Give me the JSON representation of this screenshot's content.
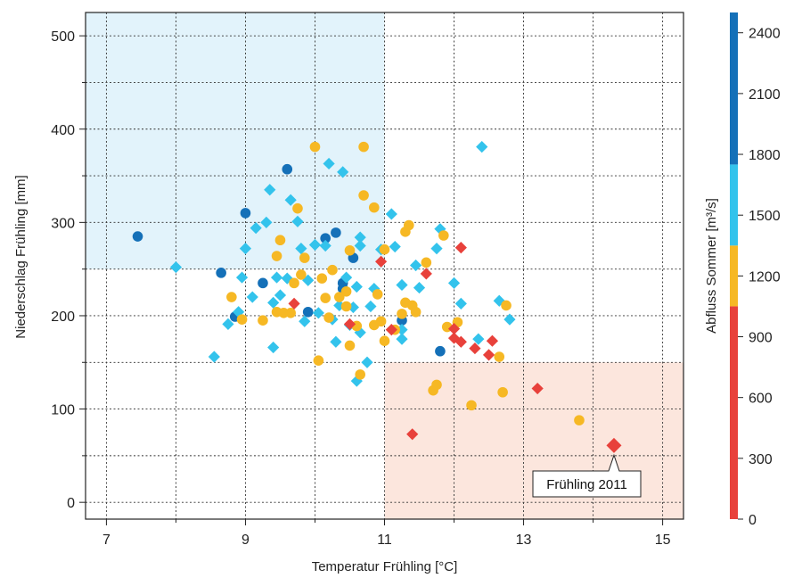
{
  "chart_data": {
    "type": "scatter",
    "xlabel": "Temperatur Frühling [°C]",
    "ylabel": "Niederschlag Frühling [mm]",
    "xlim": [
      6.7,
      15.3
    ],
    "ylim": [
      -18,
      525
    ],
    "xticks": [
      7,
      9,
      11,
      13,
      15
    ],
    "yticks": [
      0,
      100,
      200,
      300,
      400,
      500
    ],
    "grid": true,
    "highlight_regions": [
      {
        "x": [
          6.7,
          11
        ],
        "y": [
          250,
          525
        ],
        "color": "#e2f3fb"
      },
      {
        "x": [
          11,
          15.3
        ],
        "y": [
          -18,
          150
        ],
        "color": "#fce6dd"
      }
    ],
    "colorbar": {
      "label": "Abfluss Sommer [m³/s]",
      "ticks": [
        0,
        300,
        600,
        900,
        1200,
        1500,
        1800,
        2100,
        2400
      ],
      "range": [
        0,
        2500
      ],
      "bands": [
        {
          "from": 0,
          "to": 1050,
          "color": "#e8413b"
        },
        {
          "from": 1050,
          "to": 1350,
          "color": "#f6b824"
        },
        {
          "from": 1350,
          "to": 1750,
          "color": "#33c3ec"
        },
        {
          "from": 1750,
          "to": 2500,
          "color": "#1470b8"
        }
      ]
    },
    "annotation": {
      "text": "Frühling 2011",
      "x": 14.3,
      "y": 61
    },
    "series": [
      {
        "marker": "circle",
        "class": "1750-2500",
        "color": "#1470b8",
        "points": [
          [
            7.45,
            285
          ],
          [
            9.0,
            310
          ],
          [
            9.6,
            357
          ],
          [
            8.65,
            246
          ],
          [
            9.25,
            235
          ],
          [
            8.85,
            199
          ],
          [
            9.9,
            204
          ],
          [
            10.15,
            283
          ],
          [
            10.3,
            289
          ],
          [
            10.4,
            235
          ],
          [
            10.4,
            229
          ],
          [
            10.55,
            262
          ],
          [
            11.25,
            195
          ],
          [
            11.8,
            162
          ]
        ]
      },
      {
        "marker": "diamond",
        "class": "1350-1750",
        "color": "#33c3ec",
        "points": [
          [
            8.0,
            252
          ],
          [
            8.55,
            156
          ],
          [
            8.75,
            191
          ],
          [
            8.9,
            204
          ],
          [
            8.95,
            241
          ],
          [
            9.0,
            272
          ],
          [
            9.1,
            220
          ],
          [
            9.15,
            294
          ],
          [
            9.3,
            300
          ],
          [
            9.35,
            335
          ],
          [
            9.4,
            166
          ],
          [
            9.4,
            214
          ],
          [
            9.45,
            241
          ],
          [
            9.5,
            222
          ],
          [
            9.6,
            240
          ],
          [
            9.65,
            324
          ],
          [
            9.75,
            301
          ],
          [
            9.8,
            272
          ],
          [
            9.85,
            194
          ],
          [
            9.9,
            238
          ],
          [
            10.0,
            276
          ],
          [
            10.05,
            203
          ],
          [
            10.15,
            275
          ],
          [
            10.2,
            363
          ],
          [
            10.25,
            196
          ],
          [
            10.3,
            172
          ],
          [
            10.35,
            211
          ],
          [
            10.4,
            354
          ],
          [
            10.45,
            241
          ],
          [
            10.5,
            190
          ],
          [
            10.55,
            209
          ],
          [
            10.6,
            130
          ],
          [
            10.6,
            231
          ],
          [
            10.65,
            275
          ],
          [
            10.65,
            284
          ],
          [
            10.65,
            182
          ],
          [
            10.75,
            150
          ],
          [
            10.8,
            210
          ],
          [
            10.85,
            229
          ],
          [
            10.95,
            271
          ],
          [
            11.1,
            309
          ],
          [
            11.15,
            274
          ],
          [
            11.25,
            233
          ],
          [
            11.25,
            185
          ],
          [
            11.25,
            175
          ],
          [
            11.45,
            254
          ],
          [
            11.5,
            230
          ],
          [
            11.75,
            272
          ],
          [
            11.8,
            293
          ],
          [
            12.0,
            235
          ],
          [
            12.1,
            213
          ],
          [
            12.35,
            175
          ],
          [
            12.4,
            381
          ],
          [
            12.65,
            216
          ],
          [
            12.8,
            196
          ]
        ]
      },
      {
        "marker": "circle",
        "class": "1050-1350",
        "color": "#f6b824",
        "points": [
          [
            8.8,
            220
          ],
          [
            8.95,
            196
          ],
          [
            9.25,
            195
          ],
          [
            9.45,
            264
          ],
          [
            9.45,
            204
          ],
          [
            9.5,
            281
          ],
          [
            9.55,
            203
          ],
          [
            9.65,
            203
          ],
          [
            9.7,
            235
          ],
          [
            9.75,
            315
          ],
          [
            9.8,
            244
          ],
          [
            9.85,
            262
          ],
          [
            10.0,
            381
          ],
          [
            10.05,
            152
          ],
          [
            10.1,
            240
          ],
          [
            10.15,
            219
          ],
          [
            10.2,
            198
          ],
          [
            10.25,
            249
          ],
          [
            10.35,
            220
          ],
          [
            10.45,
            210
          ],
          [
            10.45,
            226
          ],
          [
            10.5,
            168
          ],
          [
            10.5,
            270
          ],
          [
            10.6,
            189
          ],
          [
            10.65,
            137
          ],
          [
            10.7,
            329
          ],
          [
            10.7,
            381
          ],
          [
            10.85,
            190
          ],
          [
            10.85,
            316
          ],
          [
            10.9,
            223
          ],
          [
            10.95,
            194
          ],
          [
            11.0,
            173
          ],
          [
            11.0,
            271
          ],
          [
            11.15,
            185
          ],
          [
            11.25,
            202
          ],
          [
            11.3,
            214
          ],
          [
            11.3,
            290
          ],
          [
            11.35,
            297
          ],
          [
            11.4,
            211
          ],
          [
            11.45,
            204
          ],
          [
            11.6,
            257
          ],
          [
            11.7,
            120
          ],
          [
            11.75,
            126
          ],
          [
            11.85,
            286
          ],
          [
            11.9,
            188
          ],
          [
            12.05,
            193
          ],
          [
            12.25,
            104
          ],
          [
            12.65,
            156
          ],
          [
            12.7,
            118
          ],
          [
            12.75,
            211
          ],
          [
            13.8,
            88
          ]
        ]
      },
      {
        "marker": "diamond",
        "class": "0-1050",
        "color": "#e8413b",
        "points": [
          [
            9.7,
            213
          ],
          [
            10.5,
            191
          ],
          [
            10.95,
            258
          ],
          [
            11.1,
            185
          ],
          [
            11.4,
            73
          ],
          [
            11.6,
            245
          ],
          [
            12.0,
            186
          ],
          [
            12.0,
            176
          ],
          [
            12.1,
            273
          ],
          [
            12.1,
            172
          ],
          [
            12.3,
            165
          ],
          [
            12.5,
            158
          ],
          [
            12.55,
            173
          ],
          [
            13.2,
            122
          ],
          [
            14.3,
            61
          ]
        ]
      }
    ]
  }
}
